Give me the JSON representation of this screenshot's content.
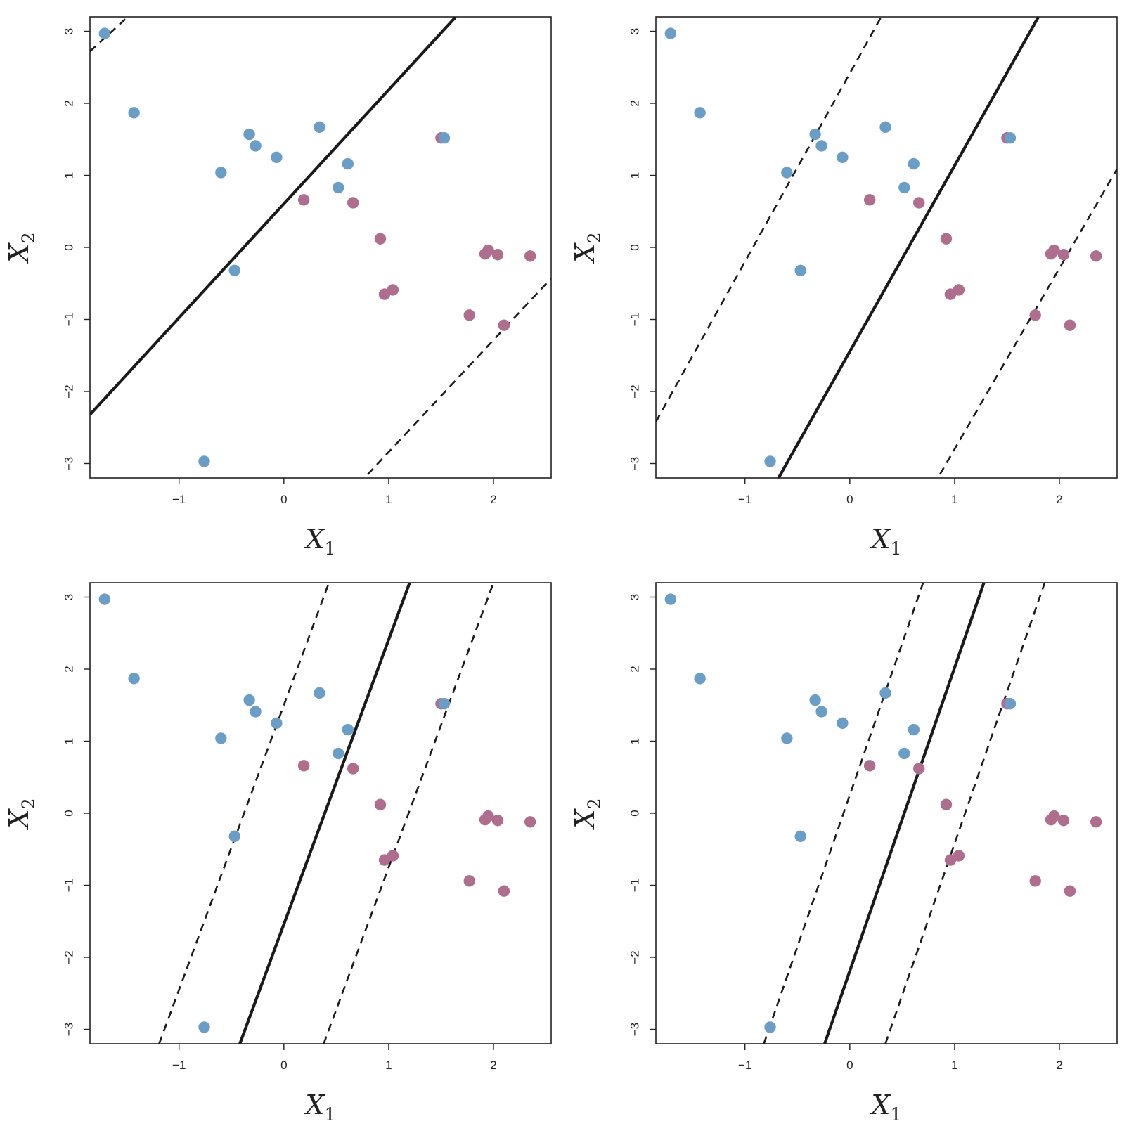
{
  "colors": {
    "blue": "#6a9ec7",
    "purple": "#b06e8e",
    "line": "#1a1a1a",
    "frame": "#222222"
  },
  "chart_data": [
    {
      "type": "scatter",
      "xlabel": "X1",
      "ylabel": "X2",
      "xlim": [
        -1.85,
        2.55
      ],
      "ylim": [
        -3.2,
        3.2
      ],
      "xticks": [
        -1,
        0,
        1,
        2
      ],
      "yticks": [
        -3,
        -2,
        -1,
        0,
        1,
        2,
        3
      ],
      "xtick_labels": [
        "−1",
        "0",
        "1",
        "2"
      ],
      "ytick_labels": [
        "−3",
        "−2",
        "−1",
        "0",
        "1",
        "2",
        "3"
      ],
      "series": [
        {
          "class": "blue",
          "points": [
            [
              -1.71,
              2.97
            ],
            [
              -1.43,
              1.87
            ],
            [
              -0.76,
              -2.97
            ],
            [
              -0.6,
              1.04
            ],
            [
              -0.47,
              -0.32
            ],
            [
              -0.33,
              1.57
            ],
            [
              -0.27,
              1.41
            ],
            [
              -0.07,
              1.25
            ],
            [
              0.34,
              1.67
            ],
            [
              0.52,
              0.83
            ],
            [
              0.61,
              1.16
            ],
            [
              1.53,
              1.52
            ]
          ]
        },
        {
          "class": "purple",
          "points": [
            [
              0.19,
              0.66
            ],
            [
              0.66,
              0.62
            ],
            [
              0.92,
              0.12
            ],
            [
              0.96,
              -0.65
            ],
            [
              1.04,
              -0.59
            ],
            [
              1.5,
              1.52
            ],
            [
              1.77,
              -0.94
            ],
            [
              1.92,
              -0.09
            ],
            [
              1.95,
              -0.04
            ],
            [
              2.04,
              -0.1
            ],
            [
              2.1,
              -1.08
            ],
            [
              2.35,
              -0.12
            ]
          ]
        }
      ],
      "lines": {
        "solid": [
          [
            -1.85,
            -2.32
          ],
          [
            1.64,
            3.2
          ]
        ],
        "dashed": [
          [
            [
              -1.85,
              2.72
            ],
            [
              -1.49,
              3.2
            ]
          ],
          [
            [
              0.8,
              -3.15
            ],
            [
              2.55,
              -0.43
            ]
          ]
        ]
      }
    },
    {
      "type": "scatter",
      "xlabel": "X1",
      "ylabel": "X2",
      "xlim": [
        -1.85,
        2.55
      ],
      "ylim": [
        -3.2,
        3.2
      ],
      "xticks": [
        -1,
        0,
        1,
        2
      ],
      "yticks": [
        -3,
        -2,
        -1,
        0,
        1,
        2,
        3
      ],
      "xtick_labels": [
        "−1",
        "0",
        "1",
        "2"
      ],
      "ytick_labels": [
        "−3",
        "−2",
        "−1",
        "0",
        "1",
        "2",
        "3"
      ],
      "series": [
        {
          "class": "blue",
          "points": [
            [
              -1.71,
              2.97
            ],
            [
              -1.43,
              1.87
            ],
            [
              -0.76,
              -2.97
            ],
            [
              -0.6,
              1.04
            ],
            [
              -0.47,
              -0.32
            ],
            [
              -0.33,
              1.57
            ],
            [
              -0.27,
              1.41
            ],
            [
              -0.07,
              1.25
            ],
            [
              0.34,
              1.67
            ],
            [
              0.52,
              0.83
            ],
            [
              0.61,
              1.16
            ],
            [
              1.53,
              1.52
            ]
          ]
        },
        {
          "class": "purple",
          "points": [
            [
              0.19,
              0.66
            ],
            [
              0.66,
              0.62
            ],
            [
              0.92,
              0.12
            ],
            [
              0.96,
              -0.65
            ],
            [
              1.04,
              -0.59
            ],
            [
              1.5,
              1.52
            ],
            [
              1.77,
              -0.94
            ],
            [
              1.92,
              -0.09
            ],
            [
              1.95,
              -0.04
            ],
            [
              2.04,
              -0.1
            ],
            [
              2.1,
              -1.08
            ],
            [
              2.35,
              -0.12
            ]
          ]
        }
      ],
      "lines": {
        "solid": [
          [
            -0.68,
            -3.2
          ],
          [
            1.8,
            3.2
          ]
        ],
        "dashed": [
          [
            [
              -1.85,
              -2.42
            ],
            [
              0.3,
              3.2
            ]
          ],
          [
            [
              0.86,
              -3.15
            ],
            [
              2.55,
              1.09
            ]
          ]
        ]
      }
    },
    {
      "type": "scatter",
      "xlabel": "X1",
      "ylabel": "X2",
      "xlim": [
        -1.85,
        2.55
      ],
      "ylim": [
        -3.2,
        3.2
      ],
      "xticks": [
        -1,
        0,
        1,
        2
      ],
      "yticks": [
        -3,
        -2,
        -1,
        0,
        1,
        2,
        3
      ],
      "xtick_labels": [
        "−1",
        "0",
        "1",
        "2"
      ],
      "ytick_labels": [
        "−3",
        "−2",
        "−1",
        "0",
        "1",
        "2",
        "3"
      ],
      "series": [
        {
          "class": "blue",
          "points": [
            [
              -1.71,
              2.97
            ],
            [
              -1.43,
              1.87
            ],
            [
              -0.76,
              -2.97
            ],
            [
              -0.6,
              1.04
            ],
            [
              -0.47,
              -0.32
            ],
            [
              -0.33,
              1.57
            ],
            [
              -0.27,
              1.41
            ],
            [
              -0.07,
              1.25
            ],
            [
              0.34,
              1.67
            ],
            [
              0.52,
              0.83
            ],
            [
              0.61,
              1.16
            ],
            [
              1.53,
              1.52
            ]
          ]
        },
        {
          "class": "purple",
          "points": [
            [
              0.19,
              0.66
            ],
            [
              0.66,
              0.62
            ],
            [
              0.92,
              0.12
            ],
            [
              0.96,
              -0.65
            ],
            [
              1.04,
              -0.59
            ],
            [
              1.5,
              1.52
            ],
            [
              1.77,
              -0.94
            ],
            [
              1.92,
              -0.09
            ],
            [
              1.95,
              -0.04
            ],
            [
              2.04,
              -0.1
            ],
            [
              2.1,
              -1.08
            ],
            [
              2.35,
              -0.12
            ]
          ]
        }
      ],
      "lines": {
        "solid": [
          [
            -0.42,
            -3.2
          ],
          [
            1.2,
            3.2
          ]
        ],
        "dashed": [
          [
            [
              -1.19,
              -3.2
            ],
            [
              0.43,
              3.2
            ]
          ],
          [
            [
              0.38,
              -3.2
            ],
            [
              2.0,
              3.2
            ]
          ]
        ]
      }
    },
    {
      "type": "scatter",
      "xlabel": "X1",
      "ylabel": "X2",
      "xlim": [
        -1.85,
        2.55
      ],
      "ylim": [
        -3.2,
        3.2
      ],
      "xticks": [
        -1,
        0,
        1,
        2
      ],
      "yticks": [
        -3,
        -2,
        -1,
        0,
        1,
        2,
        3
      ],
      "xtick_labels": [
        "−1",
        "0",
        "1",
        "2"
      ],
      "ytick_labels": [
        "−3",
        "−2",
        "−1",
        "0",
        "1",
        "2",
        "3"
      ],
      "series": [
        {
          "class": "blue",
          "points": [
            [
              -1.71,
              2.97
            ],
            [
              -1.43,
              1.87
            ],
            [
              -0.76,
              -2.97
            ],
            [
              -0.6,
              1.04
            ],
            [
              -0.47,
              -0.32
            ],
            [
              -0.33,
              1.57
            ],
            [
              -0.27,
              1.41
            ],
            [
              -0.07,
              1.25
            ],
            [
              0.34,
              1.67
            ],
            [
              0.52,
              0.83
            ],
            [
              0.61,
              1.16
            ],
            [
              1.53,
              1.52
            ]
          ]
        },
        {
          "class": "purple",
          "points": [
            [
              0.19,
              0.66
            ],
            [
              0.66,
              0.62
            ],
            [
              0.92,
              0.12
            ],
            [
              0.96,
              -0.65
            ],
            [
              1.04,
              -0.59
            ],
            [
              1.5,
              1.52
            ],
            [
              1.77,
              -0.94
            ],
            [
              1.92,
              -0.09
            ],
            [
              1.95,
              -0.04
            ],
            [
              2.04,
              -0.1
            ],
            [
              2.1,
              -1.08
            ],
            [
              2.35,
              -0.12
            ]
          ]
        }
      ],
      "lines": {
        "solid": [
          [
            -0.24,
            -3.2
          ],
          [
            1.28,
            3.2
          ]
        ],
        "dashed": [
          [
            [
              -0.82,
              -3.2
            ],
            [
              0.7,
              3.2
            ]
          ],
          [
            [
              0.34,
              -3.2
            ],
            [
              1.86,
              3.2
            ]
          ]
        ]
      }
    }
  ]
}
